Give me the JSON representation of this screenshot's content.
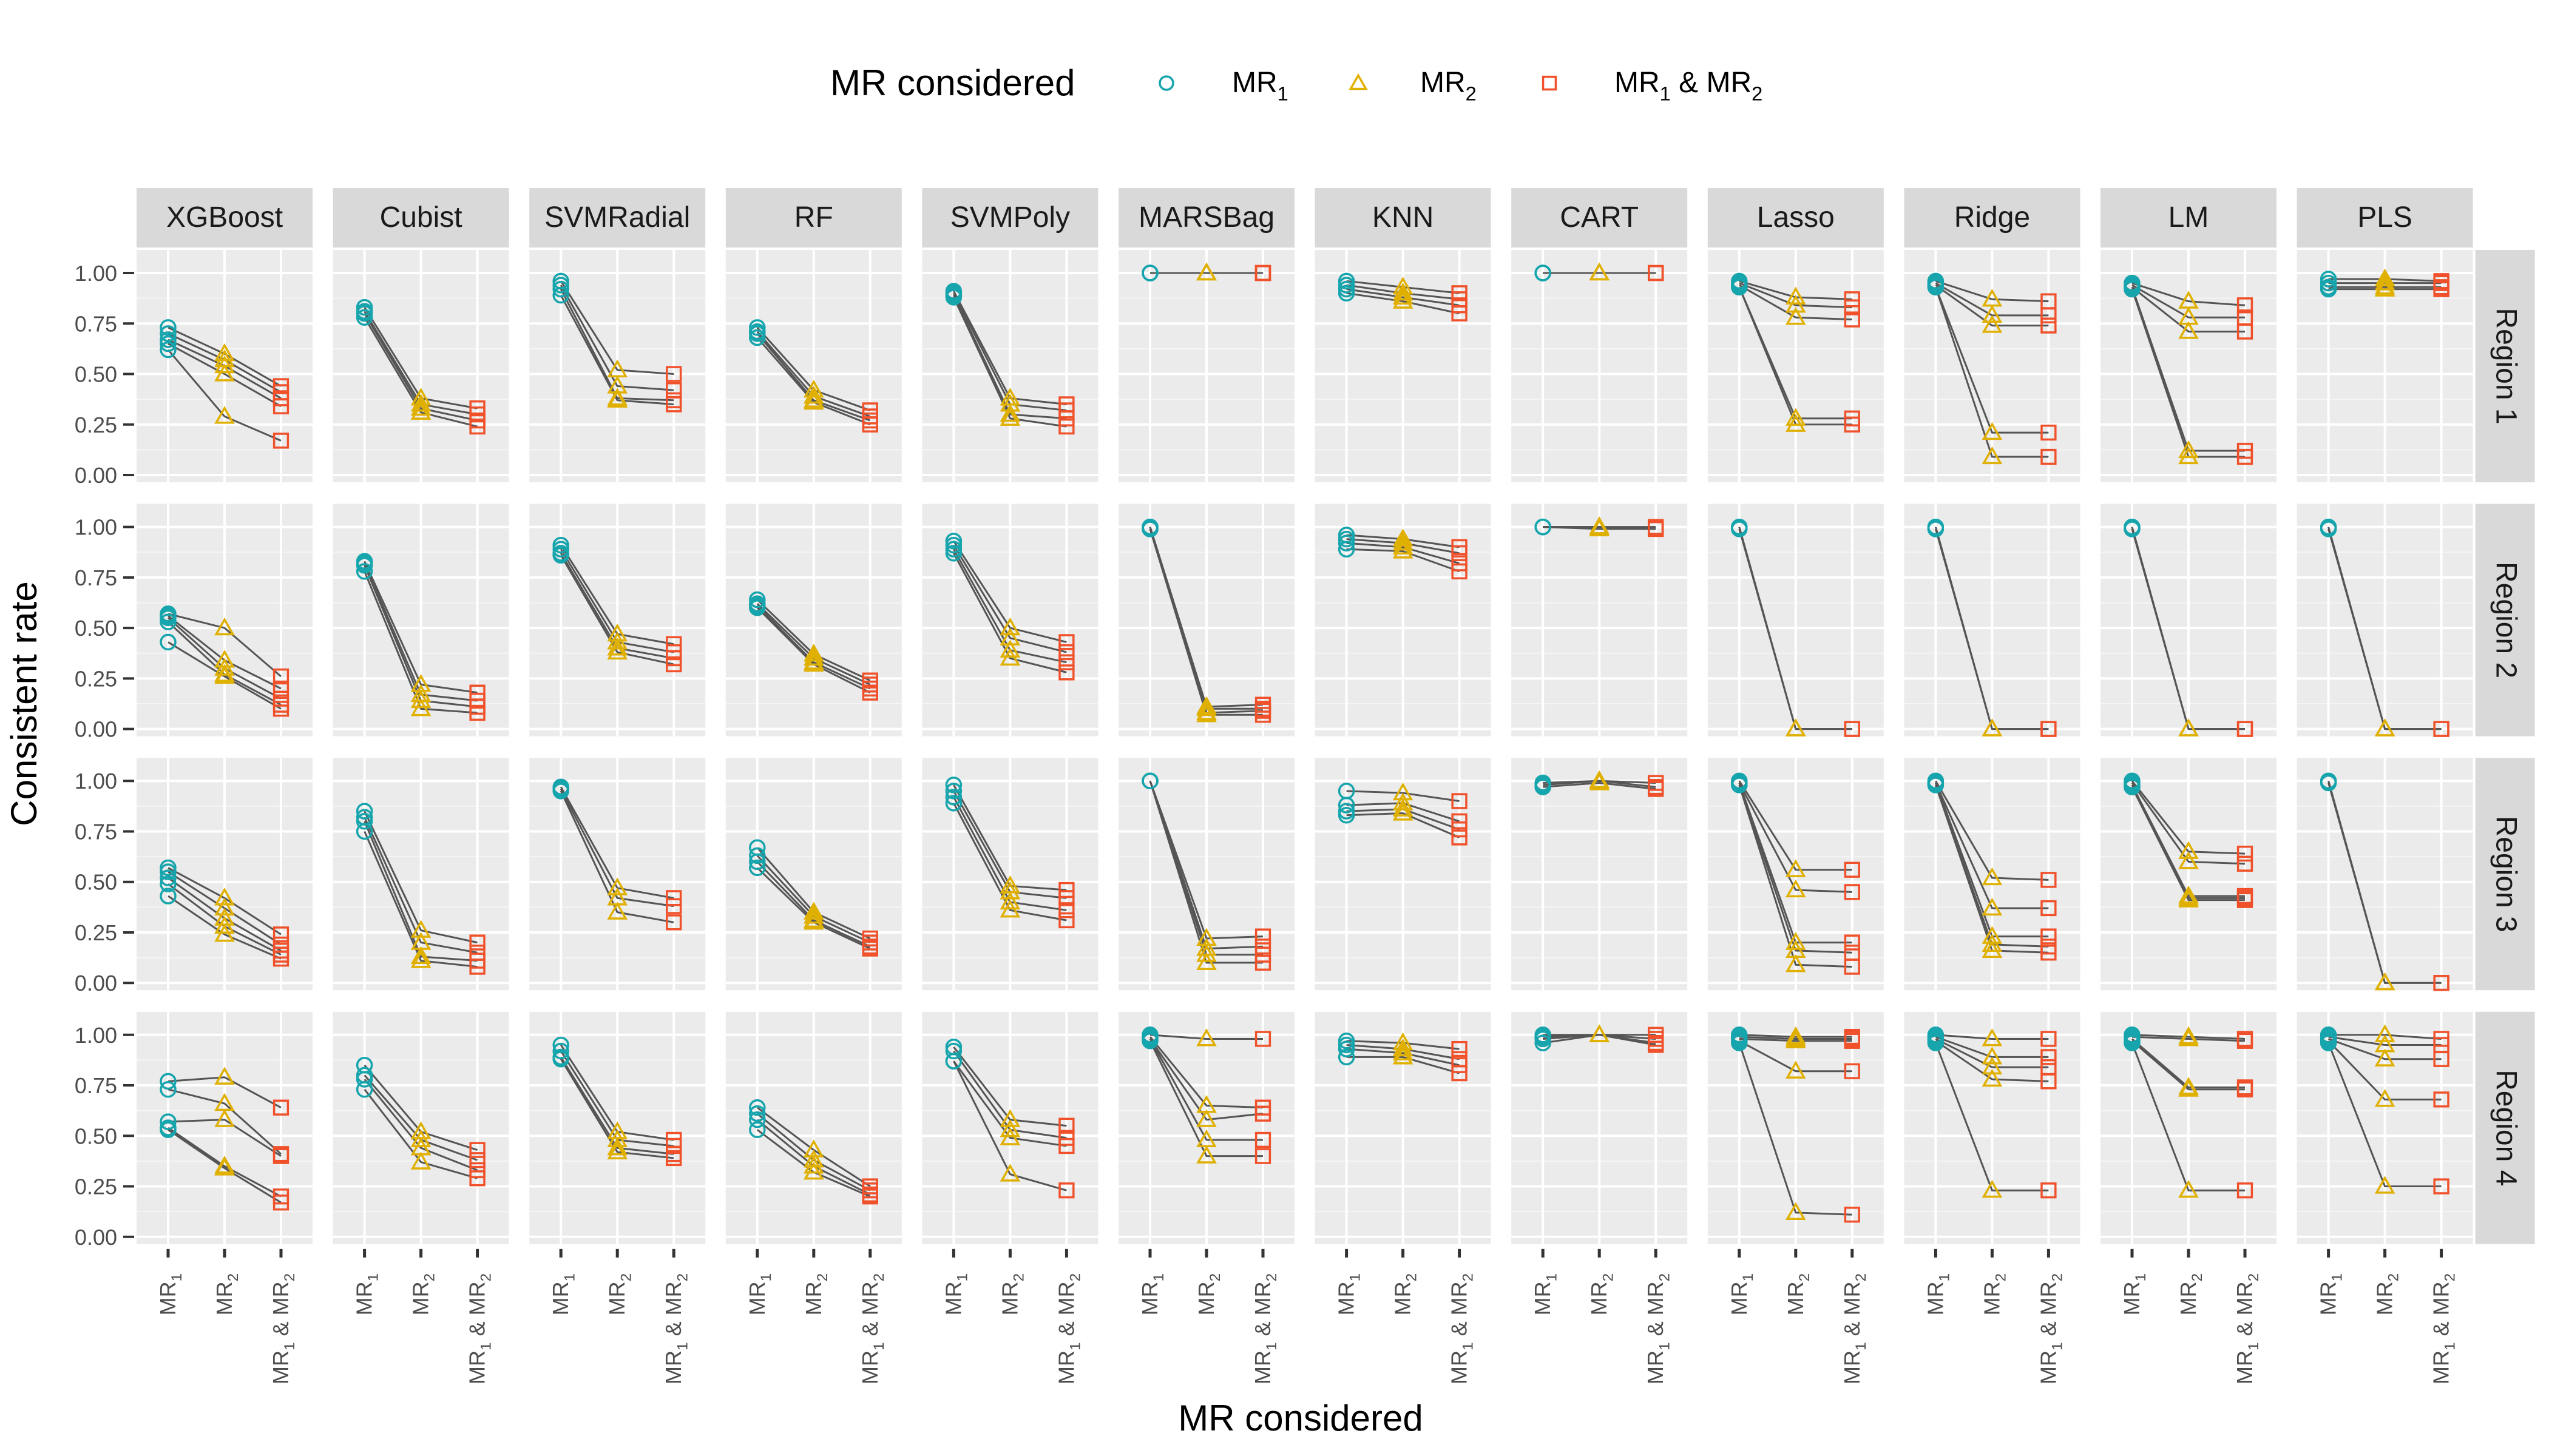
{
  "chart_data": {
    "type": "scatter",
    "title": "",
    "xlabel": "MR considered",
    "ylabel": "Consistent rate",
    "legend": {
      "title": "MR considered",
      "position": "top"
    },
    "ylim": [
      0,
      1
    ],
    "yticks": [
      "0.00",
      "0.25",
      "0.50",
      "0.75",
      "1.00"
    ],
    "x_categories": [
      {
        "key": "mr1",
        "main": "MR",
        "sub": "1",
        "rest": ""
      },
      {
        "key": "mr2",
        "main": "MR",
        "sub": "2",
        "rest": ""
      },
      {
        "key": "mr12",
        "main": "MR",
        "sub": "1",
        "rest": " & MR",
        "sub2": "2"
      }
    ],
    "series": [
      {
        "key": "mr1",
        "label_main": "MR",
        "label_sub": "1",
        "label_rest": "",
        "label_sub2": "",
        "shape": "circle",
        "color": "#16A5AD"
      },
      {
        "key": "mr2",
        "label_main": "MR",
        "label_sub": "2",
        "label_rest": "",
        "label_sub2": "",
        "shape": "triangle",
        "color": "#E0B000"
      },
      {
        "key": "mr12",
        "label_main": "MR",
        "label_sub": "1",
        "label_rest": " & MR",
        "label_sub2": "2",
        "shape": "square",
        "color": "#F0512A"
      }
    ],
    "models": [
      "XGBoost",
      "Cubist",
      "SVMRadial",
      "RF",
      "SVMPoly",
      "MARSBag",
      "KNN",
      "CART",
      "Lasso",
      "Ridge",
      "LM",
      "PLS"
    ],
    "regions": [
      "Region 1",
      "Region 2",
      "Region 3",
      "Region 4"
    ],
    "panels": {
      "Region 1": {
        "XGBoost": [
          [
            0.73,
            0.6,
            0.44
          ],
          [
            0.7,
            0.57,
            0.41
          ],
          [
            0.67,
            0.54,
            0.38
          ],
          [
            0.65,
            0.5,
            0.34
          ],
          [
            0.62,
            0.29,
            0.17
          ]
        ],
        "Cubist": [
          [
            0.83,
            0.38,
            0.33
          ],
          [
            0.81,
            0.35,
            0.3
          ],
          [
            0.8,
            0.33,
            0.27
          ],
          [
            0.78,
            0.31,
            0.24
          ]
        ],
        "SVMRadial": [
          [
            0.96,
            0.52,
            0.5
          ],
          [
            0.94,
            0.44,
            0.42
          ],
          [
            0.92,
            0.38,
            0.37
          ],
          [
            0.89,
            0.37,
            0.35
          ]
        ],
        "RF": [
          [
            0.73,
            0.42,
            0.32
          ],
          [
            0.71,
            0.39,
            0.29
          ],
          [
            0.7,
            0.37,
            0.27
          ],
          [
            0.68,
            0.36,
            0.25
          ]
        ],
        "SVMPoly": [
          [
            0.91,
            0.38,
            0.35
          ],
          [
            0.9,
            0.35,
            0.32
          ],
          [
            0.89,
            0.3,
            0.28
          ],
          [
            0.88,
            0.28,
            0.24
          ]
        ],
        "MARSBag": [
          [
            1.0,
            1.0,
            1.0
          ],
          [
            1.0,
            1.0,
            1.0
          ],
          [
            1.0,
            1.0,
            1.0
          ],
          [
            1.0,
            1.0,
            1.0
          ]
        ],
        "KNN": [
          [
            0.96,
            0.93,
            0.9
          ],
          [
            0.94,
            0.9,
            0.87
          ],
          [
            0.92,
            0.88,
            0.84
          ],
          [
            0.9,
            0.86,
            0.8
          ]
        ],
        "CART": [
          [
            1.0,
            1.0,
            1.0
          ],
          [
            1.0,
            1.0,
            1.0
          ],
          [
            1.0,
            1.0,
            1.0
          ]
        ],
        "Lasso": [
          [
            0.96,
            0.88,
            0.87
          ],
          [
            0.95,
            0.84,
            0.83
          ],
          [
            0.94,
            0.78,
            0.77
          ],
          [
            0.93,
            0.28,
            0.28
          ],
          [
            0.93,
            0.25,
            0.25
          ]
        ],
        "Ridge": [
          [
            0.96,
            0.87,
            0.86
          ],
          [
            0.95,
            0.79,
            0.79
          ],
          [
            0.94,
            0.74,
            0.74
          ],
          [
            0.93,
            0.21,
            0.21
          ],
          [
            0.93,
            0.09,
            0.09
          ]
        ],
        "LM": [
          [
            0.95,
            0.86,
            0.84
          ],
          [
            0.94,
            0.78,
            0.78
          ],
          [
            0.93,
            0.71,
            0.71
          ],
          [
            0.93,
            0.12,
            0.12
          ],
          [
            0.92,
            0.09,
            0.09
          ]
        ],
        "PLS": [
          [
            0.97,
            0.97,
            0.96
          ],
          [
            0.95,
            0.95,
            0.95
          ],
          [
            0.93,
            0.93,
            0.93
          ],
          [
            0.92,
            0.92,
            0.92
          ]
        ]
      },
      "Region 2": {
        "XGBoost": [
          [
            0.57,
            0.5,
            0.26
          ],
          [
            0.56,
            0.34,
            0.2
          ],
          [
            0.55,
            0.3,
            0.15
          ],
          [
            0.53,
            0.27,
            0.12
          ],
          [
            0.43,
            0.26,
            0.1
          ]
        ],
        "Cubist": [
          [
            0.83,
            0.22,
            0.18
          ],
          [
            0.82,
            0.17,
            0.14
          ],
          [
            0.81,
            0.14,
            0.11
          ],
          [
            0.78,
            0.1,
            0.08
          ]
        ],
        "SVMRadial": [
          [
            0.91,
            0.47,
            0.42
          ],
          [
            0.89,
            0.43,
            0.38
          ],
          [
            0.87,
            0.4,
            0.35
          ],
          [
            0.86,
            0.38,
            0.32
          ]
        ],
        "RF": [
          [
            0.64,
            0.37,
            0.24
          ],
          [
            0.62,
            0.35,
            0.22
          ],
          [
            0.61,
            0.33,
            0.2
          ],
          [
            0.6,
            0.32,
            0.18
          ]
        ],
        "SVMPoly": [
          [
            0.93,
            0.5,
            0.43
          ],
          [
            0.91,
            0.45,
            0.38
          ],
          [
            0.89,
            0.39,
            0.33
          ],
          [
            0.87,
            0.35,
            0.28
          ]
        ],
        "MARSBag": [
          [
            1.0,
            0.11,
            0.12
          ],
          [
            1.0,
            0.1,
            0.1
          ],
          [
            0.99,
            0.08,
            0.09
          ],
          [
            0.99,
            0.07,
            0.07
          ]
        ],
        "KNN": [
          [
            0.96,
            0.94,
            0.9
          ],
          [
            0.94,
            0.92,
            0.87
          ],
          [
            0.92,
            0.9,
            0.82
          ],
          [
            0.89,
            0.88,
            0.78
          ]
        ],
        "CART": [
          [
            1.0,
            1.0,
            1.0
          ],
          [
            1.0,
            1.0,
            0.99
          ],
          [
            1.0,
            0.99,
            0.99
          ]
        ],
        "Lasso": [
          [
            1.0,
            0.0,
            0.0
          ],
          [
            0.99,
            0.0,
            0.0
          ]
        ],
        "Ridge": [
          [
            1.0,
            0.0,
            0.0
          ],
          [
            0.99,
            0.0,
            0.0
          ]
        ],
        "LM": [
          [
            1.0,
            0.0,
            0.0
          ],
          [
            0.99,
            0.0,
            0.0
          ]
        ],
        "PLS": [
          [
            1.0,
            0.0,
            0.0
          ],
          [
            0.99,
            0.0,
            0.0
          ]
        ]
      },
      "Region 3": {
        "XGBoost": [
          [
            0.57,
            0.42,
            0.24
          ],
          [
            0.55,
            0.37,
            0.19
          ],
          [
            0.52,
            0.32,
            0.16
          ],
          [
            0.49,
            0.28,
            0.14
          ],
          [
            0.43,
            0.24,
            0.12
          ]
        ],
        "Cubist": [
          [
            0.85,
            0.26,
            0.2
          ],
          [
            0.82,
            0.2,
            0.15
          ],
          [
            0.8,
            0.13,
            0.11
          ],
          [
            0.75,
            0.11,
            0.08
          ]
        ],
        "SVMRadial": [
          [
            0.97,
            0.47,
            0.42
          ],
          [
            0.96,
            0.42,
            0.38
          ],
          [
            0.95,
            0.35,
            0.3
          ]
        ],
        "RF": [
          [
            0.67,
            0.35,
            0.22
          ],
          [
            0.63,
            0.33,
            0.2
          ],
          [
            0.6,
            0.31,
            0.18
          ],
          [
            0.57,
            0.3,
            0.17
          ]
        ],
        "SVMPoly": [
          [
            0.98,
            0.48,
            0.46
          ],
          [
            0.95,
            0.45,
            0.42
          ],
          [
            0.92,
            0.4,
            0.36
          ],
          [
            0.89,
            0.36,
            0.31
          ]
        ],
        "MARSBag": [
          [
            1.0,
            0.22,
            0.23
          ],
          [
            1.0,
            0.17,
            0.18
          ],
          [
            1.0,
            0.14,
            0.14
          ],
          [
            1.0,
            0.1,
            0.1
          ]
        ],
        "KNN": [
          [
            0.95,
            0.94,
            0.9
          ],
          [
            0.88,
            0.89,
            0.8
          ],
          [
            0.85,
            0.86,
            0.76
          ],
          [
            0.83,
            0.84,
            0.72
          ]
        ],
        "CART": [
          [
            0.99,
            1.0,
            0.99
          ],
          [
            0.98,
            1.0,
            0.97
          ],
          [
            0.97,
            0.99,
            0.96
          ]
        ],
        "Lasso": [
          [
            1.0,
            0.56,
            0.56
          ],
          [
            0.99,
            0.46,
            0.45
          ],
          [
            0.99,
            0.2,
            0.2
          ],
          [
            0.98,
            0.16,
            0.15
          ],
          [
            0.98,
            0.09,
            0.08
          ]
        ],
        "Ridge": [
          [
            1.0,
            0.52,
            0.51
          ],
          [
            0.99,
            0.37,
            0.37
          ],
          [
            0.99,
            0.23,
            0.23
          ],
          [
            0.98,
            0.19,
            0.18
          ],
          [
            0.98,
            0.16,
            0.15
          ]
        ],
        "LM": [
          [
            1.0,
            0.65,
            0.64
          ],
          [
            0.99,
            0.6,
            0.59
          ],
          [
            0.98,
            0.43,
            0.43
          ],
          [
            0.97,
            0.42,
            0.42
          ],
          [
            0.97,
            0.41,
            0.41
          ]
        ],
        "PLS": [
          [
            1.0,
            0.0,
            0.0
          ],
          [
            0.99,
            0.0,
            0.0
          ]
        ]
      },
      "Region 4": {
        "XGBoost": [
          [
            0.77,
            0.79,
            0.64
          ],
          [
            0.73,
            0.66,
            0.41
          ],
          [
            0.57,
            0.58,
            0.4
          ],
          [
            0.54,
            0.35,
            0.2
          ],
          [
            0.53,
            0.34,
            0.17
          ]
        ],
        "Cubist": [
          [
            0.85,
            0.52,
            0.43
          ],
          [
            0.8,
            0.48,
            0.38
          ],
          [
            0.78,
            0.44,
            0.33
          ],
          [
            0.73,
            0.37,
            0.29
          ]
        ],
        "SVMRadial": [
          [
            0.95,
            0.52,
            0.48
          ],
          [
            0.92,
            0.48,
            0.45
          ],
          [
            0.89,
            0.44,
            0.41
          ],
          [
            0.88,
            0.42,
            0.39
          ]
        ],
        "RF": [
          [
            0.64,
            0.43,
            0.25
          ],
          [
            0.61,
            0.38,
            0.23
          ],
          [
            0.58,
            0.35,
            0.21
          ],
          [
            0.53,
            0.32,
            0.2
          ]
        ],
        "SVMPoly": [
          [
            0.94,
            0.58,
            0.55
          ],
          [
            0.92,
            0.53,
            0.49
          ],
          [
            0.87,
            0.49,
            0.45
          ],
          [
            0.87,
            0.31,
            0.23
          ]
        ],
        "MARSBag": [
          [
            1.0,
            0.98,
            0.98
          ],
          [
            0.99,
            0.65,
            0.64
          ],
          [
            0.98,
            0.58,
            0.61
          ],
          [
            0.98,
            0.48,
            0.48
          ],
          [
            0.97,
            0.4,
            0.4
          ]
        ],
        "KNN": [
          [
            0.97,
            0.96,
            0.93
          ],
          [
            0.95,
            0.93,
            0.88
          ],
          [
            0.93,
            0.91,
            0.85
          ],
          [
            0.89,
            0.89,
            0.81
          ]
        ],
        "CART": [
          [
            1.0,
            1.0,
            1.0
          ],
          [
            0.99,
            1.0,
            0.98
          ],
          [
            0.98,
            1.0,
            0.96
          ],
          [
            0.96,
            1.0,
            0.95
          ]
        ],
        "Lasso": [
          [
            1.0,
            0.99,
            0.99
          ],
          [
            0.99,
            0.98,
            0.98
          ],
          [
            0.98,
            0.97,
            0.97
          ],
          [
            0.97,
            0.82,
            0.82
          ],
          [
            0.96,
            0.12,
            0.11
          ]
        ],
        "Ridge": [
          [
            1.0,
            0.98,
            0.98
          ],
          [
            0.99,
            0.89,
            0.89
          ],
          [
            0.98,
            0.84,
            0.84
          ],
          [
            0.97,
            0.78,
            0.77
          ],
          [
            0.96,
            0.23,
            0.23
          ]
        ],
        "LM": [
          [
            1.0,
            0.99,
            0.98
          ],
          [
            0.99,
            0.98,
            0.97
          ],
          [
            0.98,
            0.74,
            0.74
          ],
          [
            0.97,
            0.73,
            0.73
          ],
          [
            0.96,
            0.23,
            0.23
          ]
        ],
        "PLS": [
          [
            1.0,
            1.0,
            0.98
          ],
          [
            0.99,
            0.95,
            0.95
          ],
          [
            0.98,
            0.88,
            0.88
          ],
          [
            0.97,
            0.68,
            0.68
          ],
          [
            0.96,
            0.25,
            0.25
          ]
        ]
      }
    }
  }
}
